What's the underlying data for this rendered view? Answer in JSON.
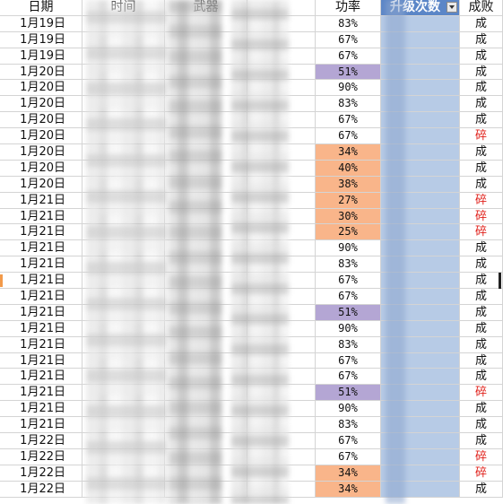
{
  "headers": {
    "date": "日期",
    "time": "时间",
    "weapon": "武器",
    "obscured": "",
    "rate": "功率",
    "count": "升级次数",
    "result": "成败"
  },
  "colors": {
    "orange": "#f9b58a",
    "purple": "#b4a6d4",
    "blue": "#b7cbe6",
    "header_selected": "#5b86c7",
    "fail_text": "#e0201a"
  },
  "rows": [
    {
      "date": "1月19日",
      "rate": "83%",
      "rate_style": "",
      "result": "成",
      "result_style": ""
    },
    {
      "date": "1月19日",
      "rate": "67%",
      "rate_style": "",
      "result": "成",
      "result_style": ""
    },
    {
      "date": "1月19日",
      "rate": "67%",
      "rate_style": "",
      "result": "成",
      "result_style": ""
    },
    {
      "date": "1月20日",
      "rate": "51%",
      "rate_style": "purple",
      "result": "成",
      "result_style": ""
    },
    {
      "date": "1月20日",
      "rate": "90%",
      "rate_style": "",
      "result": "成",
      "result_style": ""
    },
    {
      "date": "1月20日",
      "rate": "83%",
      "rate_style": "",
      "result": "成",
      "result_style": ""
    },
    {
      "date": "1月20日",
      "rate": "67%",
      "rate_style": "",
      "result": "成",
      "result_style": ""
    },
    {
      "date": "1月20日",
      "rate": "67%",
      "rate_style": "",
      "result": "碎",
      "result_style": "fail"
    },
    {
      "date": "1月20日",
      "rate": "34%",
      "rate_style": "orange",
      "result": "成",
      "result_style": ""
    },
    {
      "date": "1月20日",
      "rate": "40%",
      "rate_style": "orange",
      "result": "成",
      "result_style": ""
    },
    {
      "date": "1月20日",
      "rate": "38%",
      "rate_style": "orange",
      "result": "成",
      "result_style": ""
    },
    {
      "date": "1月21日",
      "rate": "27%",
      "rate_style": "orange",
      "result": "碎",
      "result_style": "fail"
    },
    {
      "date": "1月21日",
      "rate": "30%",
      "rate_style": "orange",
      "result": "碎",
      "result_style": "fail"
    },
    {
      "date": "1月21日",
      "rate": "25%",
      "rate_style": "orange",
      "result": "碎",
      "result_style": "fail"
    },
    {
      "date": "1月21日",
      "rate": "90%",
      "rate_style": "",
      "result": "成",
      "result_style": ""
    },
    {
      "date": "1月21日",
      "rate": "83%",
      "rate_style": "",
      "result": "成",
      "result_style": ""
    },
    {
      "date": "1月21日",
      "rate": "67%",
      "rate_style": "",
      "result": "成",
      "result_style": ""
    },
    {
      "date": "1月21日",
      "rate": "67%",
      "rate_style": "",
      "result": "成",
      "result_style": ""
    },
    {
      "date": "1月21日",
      "rate": "51%",
      "rate_style": "purple",
      "result": "成",
      "result_style": ""
    },
    {
      "date": "1月21日",
      "rate": "90%",
      "rate_style": "",
      "result": "成",
      "result_style": ""
    },
    {
      "date": "1月21日",
      "rate": "83%",
      "rate_style": "",
      "result": "成",
      "result_style": ""
    },
    {
      "date": "1月21日",
      "rate": "67%",
      "rate_style": "",
      "result": "成",
      "result_style": ""
    },
    {
      "date": "1月21日",
      "rate": "67%",
      "rate_style": "",
      "result": "成",
      "result_style": ""
    },
    {
      "date": "1月21日",
      "rate": "51%",
      "rate_style": "purple",
      "result": "碎",
      "result_style": "fail"
    },
    {
      "date": "1月21日",
      "rate": "90%",
      "rate_style": "",
      "result": "成",
      "result_style": ""
    },
    {
      "date": "1月21日",
      "rate": "83%",
      "rate_style": "",
      "result": "成",
      "result_style": ""
    },
    {
      "date": "1月22日",
      "rate": "67%",
      "rate_style": "",
      "result": "成",
      "result_style": ""
    },
    {
      "date": "1月22日",
      "rate": "67%",
      "rate_style": "",
      "result": "碎",
      "result_style": "fail"
    },
    {
      "date": "1月22日",
      "rate": "34%",
      "rate_style": "orange",
      "result": "碎",
      "result_style": "fail"
    },
    {
      "date": "1月22日",
      "rate": "34%",
      "rate_style": "orange",
      "result": "成",
      "result_style": ""
    }
  ]
}
